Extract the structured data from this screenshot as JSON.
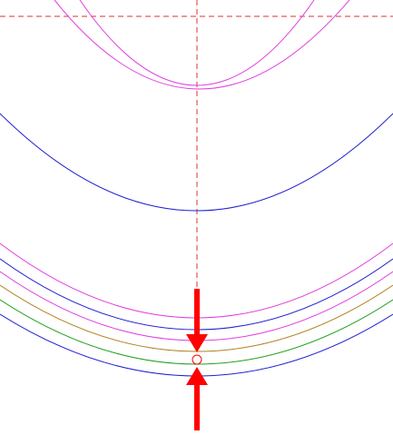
{
  "drawing": {
    "background": "#ffffff",
    "centerline_color": "#e03030",
    "marker_color": "#ff0000",
    "curve_colors": {
      "magenta": "#e040e0",
      "blue": "#2020d0",
      "olive": "#b08020",
      "green": "#20a020"
    },
    "curves": [
      {
        "name": "outer-top-arc",
        "color_key": "magenta"
      },
      {
        "name": "inner-top-arc",
        "color_key": "magenta"
      },
      {
        "name": "middle-arc",
        "color_key": "blue"
      },
      {
        "name": "lower-arc-1",
        "color_key": "magenta"
      },
      {
        "name": "lower-arc-2",
        "color_key": "blue"
      },
      {
        "name": "lower-arc-3",
        "color_key": "magenta"
      },
      {
        "name": "lower-arc-4",
        "color_key": "olive"
      },
      {
        "name": "lower-arc-5",
        "color_key": "green"
      },
      {
        "name": "lower-arc-6",
        "color_key": "blue"
      }
    ],
    "markers": {
      "arrows": [
        "arrow-down",
        "arrow-up"
      ],
      "point": "reference-point"
    }
  }
}
